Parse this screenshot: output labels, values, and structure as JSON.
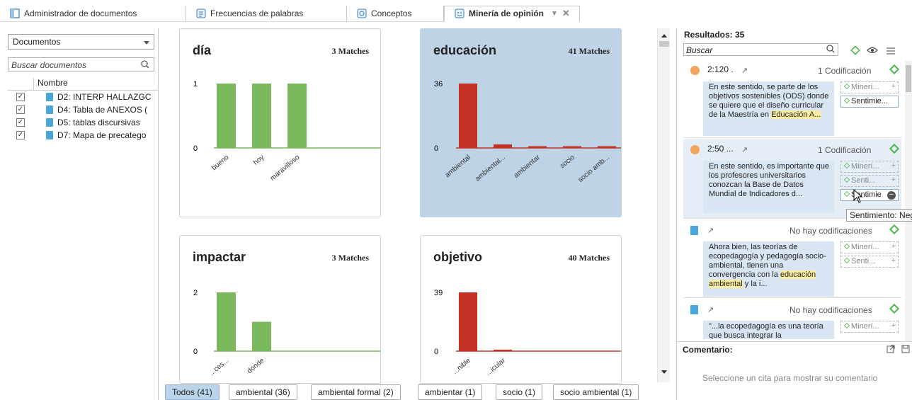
{
  "tabs": [
    {
      "label": "Administrador de documentos",
      "icon": "document-manager-icon"
    },
    {
      "label": "Frecuencias de palabras",
      "icon": "word-frequency-icon"
    },
    {
      "label": "Conceptos",
      "icon": "concepts-icon"
    },
    {
      "label": "Minería de opinión",
      "icon": "opinion-mining-icon",
      "active": true
    }
  ],
  "left": {
    "select_value": "Documentos",
    "search_placeholder": "Buscar documentos",
    "column_header": "Nombre",
    "documents": [
      {
        "name": "D2: INTERP HALLAZGC",
        "checked": true
      },
      {
        "name": "D4: Tabla de ANEXOS (",
        "checked": true
      },
      {
        "name": "D5: tablas discursivas",
        "checked": true
      },
      {
        "name": "D7: Mapa de precatego",
        "checked": true
      }
    ]
  },
  "chart_data": [
    {
      "type": "bar",
      "title": "día",
      "matches": "3 Matches",
      "categories": [
        "bueno",
        "hoy",
        "maravilloso"
      ],
      "values": [
        1,
        1,
        1
      ],
      "ylim": [
        0,
        1
      ],
      "yticks": [
        "1",
        "0"
      ],
      "color": "#7ab95c"
    },
    {
      "type": "bar",
      "title": "educación",
      "matches": "41 Matches",
      "categories": [
        "ambiental",
        "ambiental...",
        "ambientar",
        "socio",
        "socio amb..."
      ],
      "values": [
        36,
        2,
        1,
        1,
        1
      ],
      "ylim": [
        0,
        36
      ],
      "yticks": [
        "36",
        "0"
      ],
      "color": "#c43225"
    },
    {
      "type": "bar",
      "title": "impactar",
      "matches": "3 Matches",
      "categories": [
        "...ces...",
        "donde"
      ],
      "values": [
        2,
        1
      ],
      "ylim": [
        0,
        2
      ],
      "yticks": [
        "2",
        "0"
      ],
      "color": "#7ab95c"
    },
    {
      "type": "bar",
      "title": "objetivo",
      "matches": "40 Matches",
      "categories": [
        "...nible",
        "...icular"
      ],
      "values": [
        39,
        1
      ],
      "ylim": [
        0,
        39
      ],
      "yticks": [
        "39",
        "0"
      ],
      "color": "#c43225"
    }
  ],
  "chips": [
    "Todos (41)",
    "ambiental (36)",
    "ambiental formal (2)",
    "ambientar (1)",
    "socio (1)",
    "socio ambiental (1)"
  ],
  "right": {
    "results": "Resultados: 35",
    "search_placeholder": "Buscar",
    "quotes": [
      {
        "id": "2:120 .",
        "codif": "1 Codificación",
        "text_pre": "En este sentido, se parte de los objetivos sostenibles (ODS) donde se quiere que el diseño curricular de la Maestría en ",
        "text_hl": "Educación A...",
        "text_post": "",
        "codes": [
          "Minerí...",
          "Sentimie..."
        ]
      },
      {
        "id": "2:50 ...",
        "codif": "1 Codificación",
        "text_pre": "En este sentido, es importante que los profesores universitarios conozcan la Base de Datos Mundial de Indicadores d...",
        "text_hl": "",
        "text_post": "",
        "codes": [
          "Minerí...",
          "Senti...",
          "Sentimie"
        ]
      },
      {
        "id": "",
        "codif": "No hay codificaciones",
        "text_pre": "Ahora bien, las teorías de ecopedagogía y pedagogía socio-ambiental, tienen una convergencia con la ",
        "text_hl": "educación ambiental",
        "text_post": " y la i...",
        "codes": [
          "Minerí...",
          "Senti..."
        ]
      },
      {
        "id": "",
        "codif": "No hay codificaciones",
        "text_pre": "\"...la ecopedagogía es una teoría que busca integrar la",
        "text_hl": "",
        "text_post": "",
        "codes": [
          "Minerí..."
        ]
      }
    ],
    "tooltip": "Sentimiento: Negativo",
    "comment_label": "Comentario:",
    "comment_hint": "Seleccione un cita para mostrar su comentario"
  }
}
